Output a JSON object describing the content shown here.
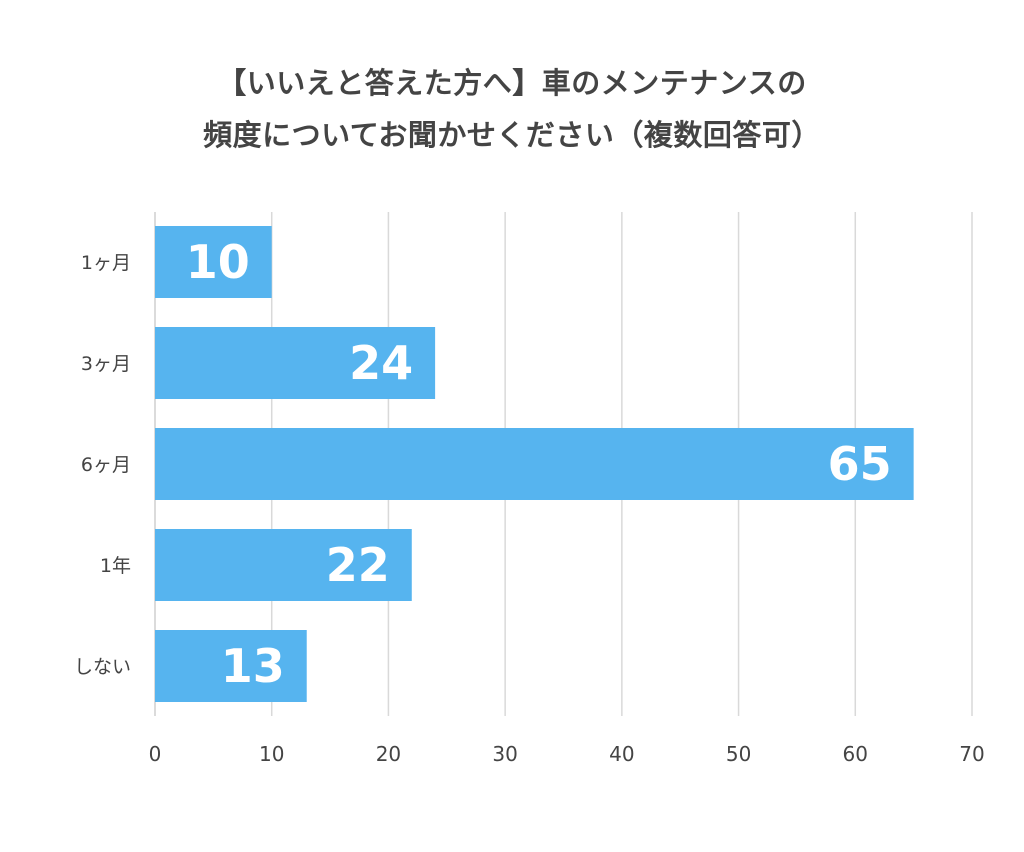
{
  "chart_data": {
    "type": "bar",
    "orientation": "horizontal",
    "title_line1": "【いいえと答えた方へ】車のメンテナンスの",
    "title_line2": "頻度についてお聞かせください（複数回答可）",
    "categories": [
      "1ヶ月",
      "3ヶ月",
      "6ヶ月",
      "1年",
      "しない"
    ],
    "values": [
      10,
      24,
      65,
      22,
      13
    ],
    "xlim": [
      0,
      70
    ],
    "xticks": [
      "0",
      "10",
      "20",
      "30",
      "40",
      "50",
      "60",
      "70"
    ],
    "grid": true,
    "bar_color": "#56b4ef",
    "grid_color": "#d9d9d9",
    "value_label_color": "#ffffff"
  }
}
